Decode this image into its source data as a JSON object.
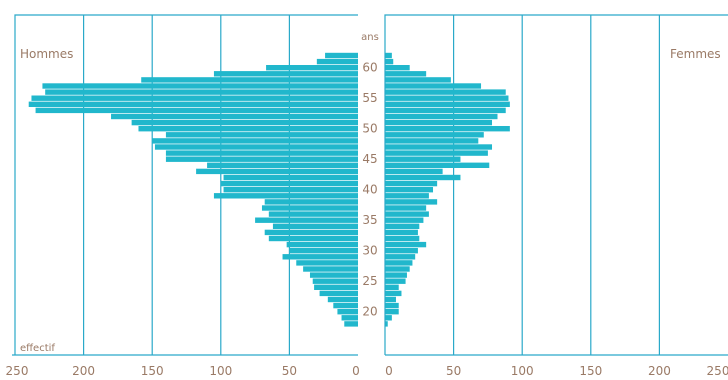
{
  "chart_data": {
    "type": "bar",
    "orientation": "horizontal",
    "subtype": "population-pyramid",
    "colors": {
      "bar": "#21b7cc",
      "frame": "#2aa9c9",
      "text": "#9a7a66"
    },
    "labels": {
      "left_series": "Hommes",
      "right_series": "Femmes",
      "y_unit": "ans",
      "x_unit": "effectif"
    },
    "y_axis": {
      "range": [
        18,
        62
      ],
      "ticks": [
        20,
        25,
        30,
        35,
        40,
        45,
        50,
        55,
        60
      ]
    },
    "x_axis": {
      "left_range": [
        0,
        250
      ],
      "right_range": [
        0,
        250
      ],
      "left_ticks": [
        250,
        200,
        150,
        100,
        50,
        0
      ],
      "right_ticks": [
        0,
        50,
        100,
        150,
        200,
        250
      ],
      "grid": true
    },
    "ages": [
      62,
      61,
      60,
      59,
      58,
      57,
      56,
      55,
      54,
      53,
      52,
      51,
      50,
      49,
      48,
      47,
      46,
      45,
      44,
      43,
      42,
      41,
      40,
      39,
      38,
      37,
      36,
      35,
      34,
      33,
      32,
      31,
      30,
      29,
      28,
      27,
      26,
      25,
      24,
      23,
      22,
      21,
      20,
      19,
      18
    ],
    "series": [
      {
        "name": "Hommes",
        "values": [
          24,
          30,
          67,
          105,
          158,
          230,
          228,
          238,
          240,
          235,
          180,
          165,
          160,
          140,
          150,
          148,
          140,
          140,
          110,
          118,
          98,
          100,
          98,
          105,
          68,
          70,
          65,
          75,
          62,
          68,
          65,
          52,
          50,
          55,
          45,
          40,
          35,
          33,
          32,
          28,
          22,
          18,
          15,
          12,
          10
        ]
      },
      {
        "name": "Femmes",
        "values": [
          5,
          6,
          18,
          30,
          48,
          70,
          88,
          90,
          91,
          88,
          82,
          78,
          91,
          72,
          68,
          78,
          75,
          55,
          76,
          42,
          55,
          38,
          35,
          32,
          38,
          30,
          32,
          28,
          25,
          24,
          25,
          30,
          24,
          22,
          20,
          18,
          16,
          15,
          10,
          12,
          8,
          10,
          10,
          5,
          2
        ]
      }
    ]
  }
}
